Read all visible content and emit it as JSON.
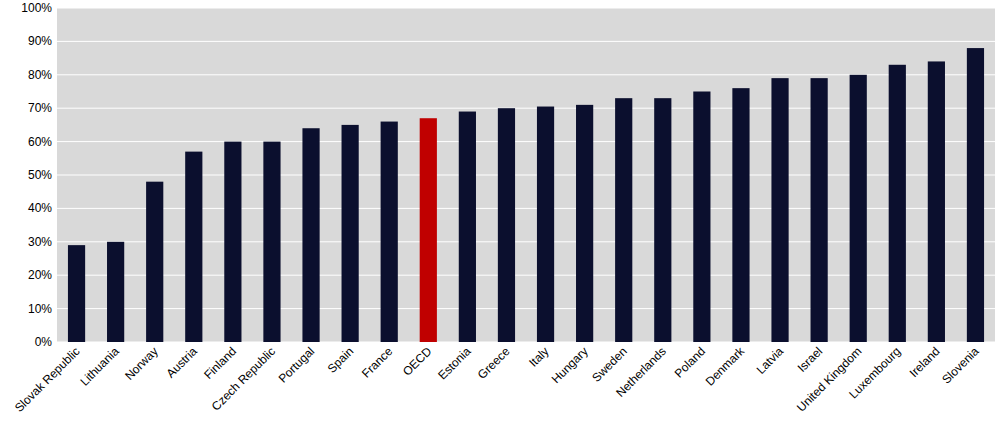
{
  "chart_data": {
    "type": "bar",
    "categories": [
      "Slovak Republic",
      "Lithuania",
      "Norway",
      "Austria",
      "Finland",
      "Czech Republic",
      "Portugal",
      "Spain",
      "France",
      "OECD",
      "Estonia",
      "Greece",
      "Italy",
      "Hungary",
      "Sweden",
      "Netherlands",
      "Poland",
      "Denmark",
      "Latvia",
      "Israel",
      "United Kingdom",
      "Luxembourg",
      "Ireland",
      "Slovenia"
    ],
    "values": [
      29,
      30,
      48,
      57,
      60,
      60,
      64,
      65,
      66,
      67,
      69,
      70,
      70.5,
      71,
      73,
      73,
      75,
      76,
      79,
      79,
      80,
      83,
      84,
      88
    ],
    "colors": [
      "#0b0f2e",
      "#0b0f2e",
      "#0b0f2e",
      "#0b0f2e",
      "#0b0f2e",
      "#0b0f2e",
      "#0b0f2e",
      "#0b0f2e",
      "#0b0f2e",
      "#c00000",
      "#0b0f2e",
      "#0b0f2e",
      "#0b0f2e",
      "#0b0f2e",
      "#0b0f2e",
      "#0b0f2e",
      "#0b0f2e",
      "#0b0f2e",
      "#0b0f2e",
      "#0b0f2e",
      "#0b0f2e",
      "#0b0f2e",
      "#0b0f2e",
      "#0b0f2e"
    ],
    "ylim": [
      0,
      100
    ],
    "yticks": [
      {
        "value": 0,
        "label": "0%"
      },
      {
        "value": 10,
        "label": "10%"
      },
      {
        "value": 20,
        "label": "20%"
      },
      {
        "value": 30,
        "label": "30%"
      },
      {
        "value": 40,
        "label": "40%"
      },
      {
        "value": 50,
        "label": "50%"
      },
      {
        "value": 60,
        "label": "60%"
      },
      {
        "value": 70,
        "label": "70%"
      },
      {
        "value": 80,
        "label": "80%"
      },
      {
        "value": 90,
        "label": "90%"
      },
      {
        "value": 100,
        "label": "100%"
      }
    ],
    "grid": true
  }
}
